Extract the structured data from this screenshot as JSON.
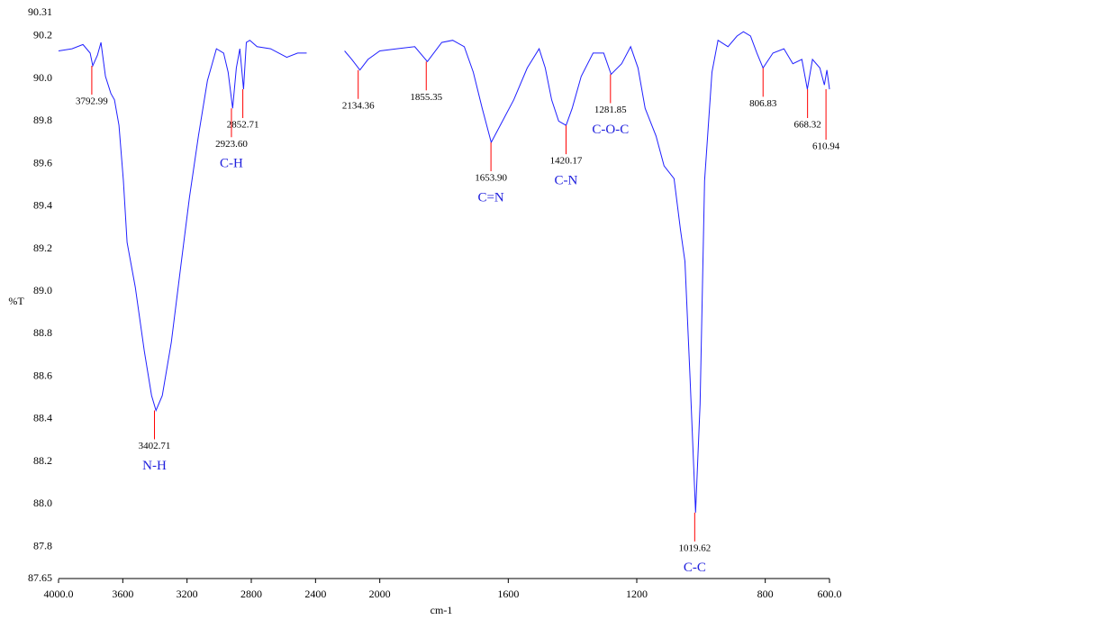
{
  "chart_data": {
    "type": "line",
    "x_label": "cm-1",
    "y_label": "%T",
    "color": "#2020ff",
    "x": [
      4000,
      3916,
      3848,
      3803,
      3787,
      3758,
      3736,
      3708,
      3674,
      3652,
      3624,
      3596,
      3573,
      3522,
      3466,
      3421,
      3393,
      3354,
      3298,
      3242,
      3185,
      3129,
      3073,
      3017,
      2972,
      2944,
      2916,
      2893,
      2871,
      2848,
      2831,
      2809,
      2764,
      2680,
      2579,
      2511,
      2455,
      2330,
      2219,
      2174,
      2124,
      2073,
      2000,
      1947,
      1891,
      1852,
      1807,
      1773,
      1737,
      1709,
      1681,
      1653,
      1625,
      1583,
      1541,
      1504,
      1485,
      1465,
      1443,
      1420,
      1401,
      1373,
      1336,
      1303,
      1280,
      1247,
      1219,
      1196,
      1174,
      1140,
      1115,
      1084,
      1064,
      1050,
      1034,
      1017,
      1003,
      989,
      966,
      947,
      916,
      888,
      868,
      846,
      826,
      807,
      776,
      742,
      714,
      686,
      669,
      653,
      630,
      616,
      608,
      600
    ],
    "values": [
      90.13,
      90.14,
      90.16,
      90.12,
      90.06,
      90.11,
      90.17,
      90.01,
      89.93,
      89.9,
      89.78,
      89.52,
      89.23,
      89.02,
      88.72,
      88.51,
      88.44,
      88.51,
      88.76,
      89.1,
      89.44,
      89.73,
      89.99,
      90.14,
      90.12,
      90.03,
      89.86,
      90.05,
      90.14,
      89.95,
      90.17,
      90.18,
      90.15,
      90.14,
      90.1,
      90.12,
      90.12,
      null,
      90.13,
      90.09,
      90.04,
      90.09,
      90.13,
      90.14,
      90.15,
      90.08,
      90.17,
      90.18,
      90.15,
      90.03,
      89.86,
      89.7,
      89.78,
      89.9,
      90.05,
      90.14,
      90.05,
      89.9,
      89.8,
      89.78,
      89.86,
      90.01,
      90.12,
      90.12,
      90.02,
      90.07,
      90.15,
      90.05,
      89.86,
      89.73,
      89.59,
      89.53,
      89.29,
      89.14,
      88.59,
      87.96,
      88.47,
      89.52,
      90.03,
      90.18,
      90.15,
      90.2,
      90.22,
      90.2,
      90.12,
      90.05,
      90.12,
      90.14,
      90.07,
      90.09,
      89.95,
      90.09,
      90.05,
      89.97,
      90.04,
      89.95
    ],
    "xlim": [
      4000,
      600
    ],
    "xbreak": 2000,
    "xticks": [
      {
        "value": 4000,
        "label": "4000.0"
      },
      3600,
      3200,
      2800,
      2400,
      2000,
      1600,
      1200,
      800,
      {
        "value": 600,
        "label": "600.0"
      }
    ],
    "ylim": [
      87.65,
      90.31
    ],
    "yticks": [
      87.65,
      87.8,
      {
        "value": 88,
        "label": "88.0"
      },
      88.2,
      88.4,
      88.6,
      88.8,
      {
        "value": 89,
        "label": "89.0"
      },
      89.2,
      89.4,
      89.6,
      89.8,
      {
        "value": 90,
        "label": "90.0"
      },
      90.2,
      90.31
    ],
    "marker_color": "#ff0000",
    "group_color": "#2020dd",
    "peaks": [
      {
        "x": 3792.99,
        "y": 90.06,
        "label": "3792.99"
      },
      {
        "x": 3402.71,
        "y": 88.44,
        "label": "3402.71",
        "group": "N-H"
      },
      {
        "x": 2852.71,
        "y": 89.95,
        "label": "2852.71"
      },
      {
        "x": 2923.6,
        "y": 89.86,
        "label": "2923.60",
        "group": "C-H"
      },
      {
        "x": 2134.36,
        "y": 90.04,
        "label": "2134.36"
      },
      {
        "x": 1855.35,
        "y": 90.08,
        "label": "1855.35"
      },
      {
        "x": 1653.9,
        "y": 89.7,
        "label": "1653.90",
        "group": "C=N"
      },
      {
        "x": 1420.17,
        "y": 89.78,
        "label": "1420.17",
        "group": "C-N"
      },
      {
        "x": 1281.85,
        "y": 90.02,
        "label": "1281.85",
        "group": "C-O-C"
      },
      {
        "x": 1019.62,
        "y": 87.96,
        "label": "1019.62",
        "group": "C-C"
      },
      {
        "x": 806.83,
        "y": 90.05,
        "label": "806.83"
      },
      {
        "x": 668.32,
        "y": 89.95,
        "label": "668.32"
      },
      {
        "x": 610.94,
        "y": 89.95,
        "label": "610.94"
      }
    ]
  }
}
